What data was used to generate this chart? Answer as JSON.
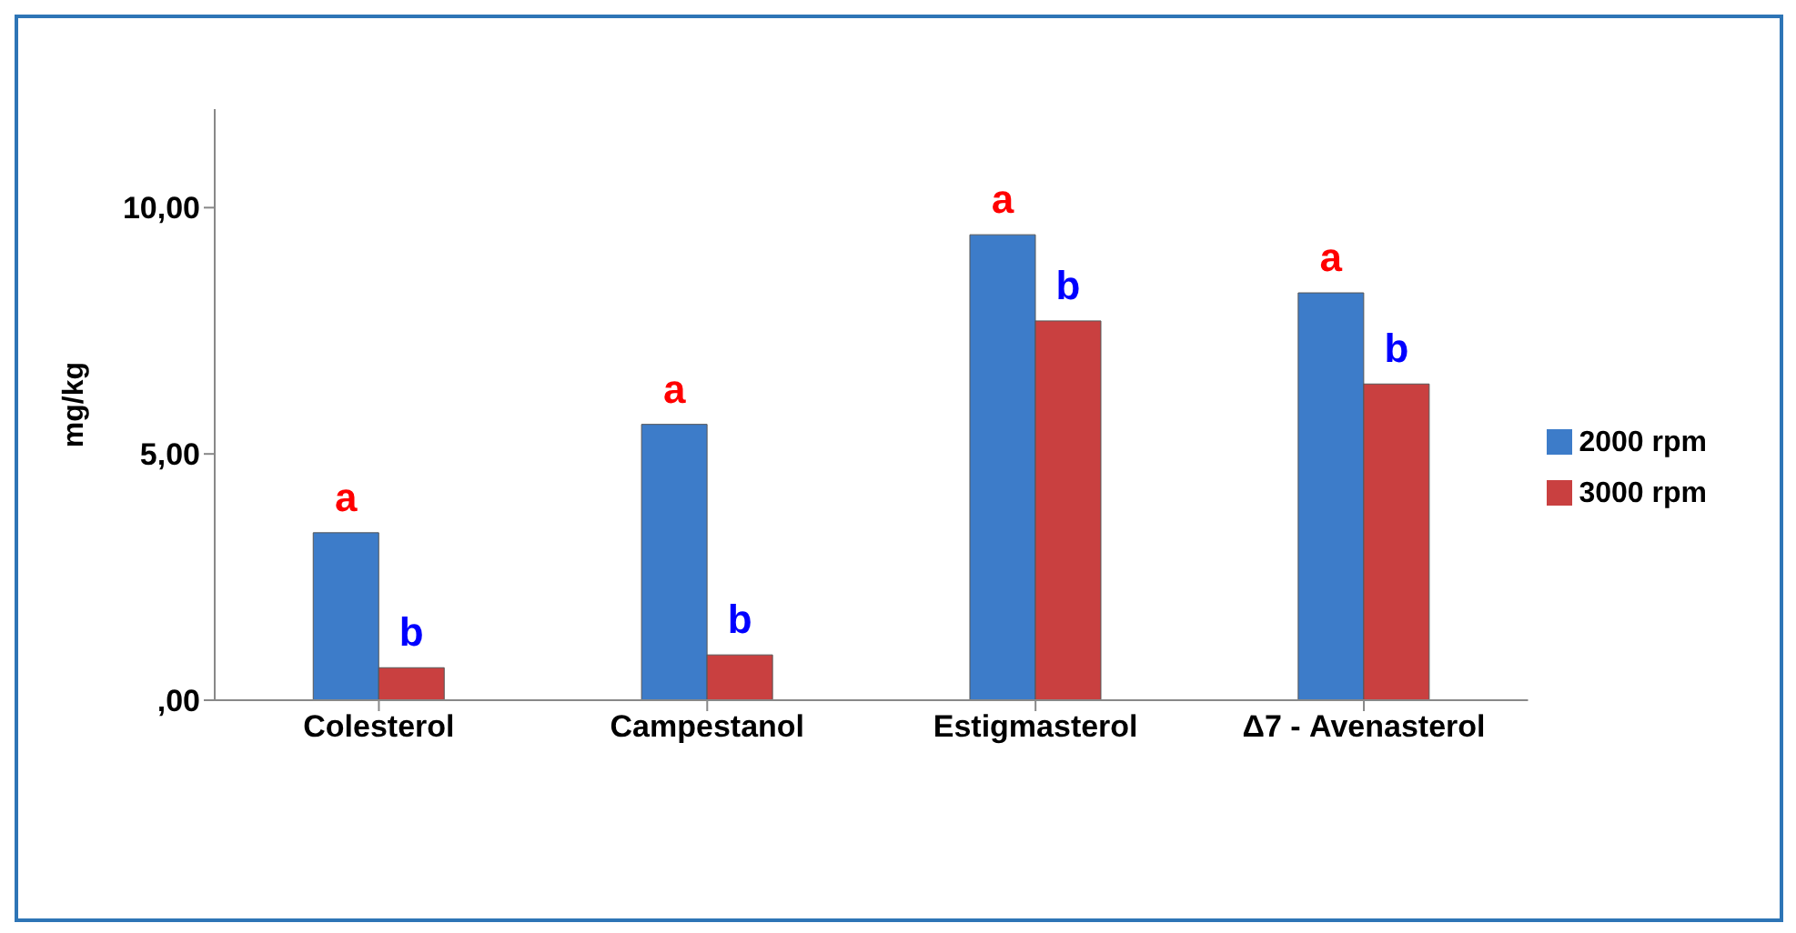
{
  "chart_data": {
    "type": "bar",
    "ylabel": "mg/kg",
    "categories": [
      "Colesterol",
      "Campestanol",
      "Estigmasterol",
      "Δ7 - Avenasterol"
    ],
    "series": [
      {
        "name": "2000 rpm",
        "color": "#3d7cc9",
        "values": [
          3.4,
          5.6,
          9.45,
          8.27
        ],
        "value_labels": [
          "a",
          "a",
          "a",
          "a"
        ]
      },
      {
        "name": "3000 rpm",
        "color": "#c94040",
        "values": [
          0.66,
          0.92,
          7.7,
          6.42
        ],
        "value_labels": [
          "b",
          "b",
          "b",
          "b"
        ]
      }
    ],
    "ylim": [
      0,
      12
    ],
    "yticks": [
      {
        "value": 0,
        "label": ",00"
      },
      {
        "value": 5,
        "label": "5,00"
      },
      {
        "value": 10,
        "label": "10,00"
      }
    ],
    "legend": "right"
  }
}
